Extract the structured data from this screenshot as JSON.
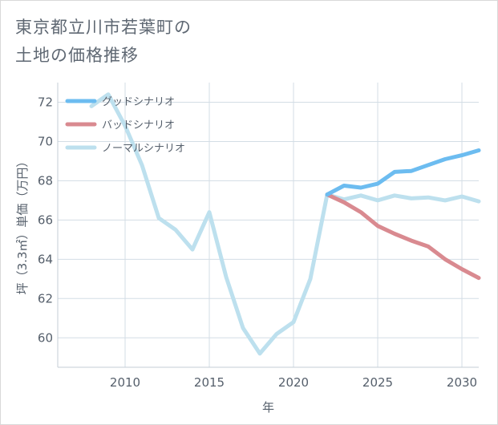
{
  "chart_data": {
    "type": "line",
    "title_lines": [
      "東京都立川市若葉町の",
      "土地の価格推移"
    ],
    "xlabel": "年",
    "ylabel": "坪（3.3㎡）単価（万円）",
    "xlim": [
      2006,
      2031
    ],
    "ylim": [
      58.5,
      73
    ],
    "x_ticks": [
      2010,
      2015,
      2020,
      2025,
      2030
    ],
    "y_ticks": [
      60,
      62,
      64,
      66,
      68,
      70,
      72
    ],
    "grid": true,
    "legend_position": "top-left",
    "series": [
      {
        "name": "グッドシナリオ",
        "color": "#6cbcf0",
        "x": [
          2022,
          2023,
          2024,
          2025,
          2026,
          2027,
          2028,
          2029,
          2030,
          2031
        ],
        "values": [
          67.3,
          67.75,
          67.65,
          67.85,
          68.45,
          68.5,
          68.8,
          69.1,
          69.3,
          69.55
        ]
      },
      {
        "name": "バッドシナリオ",
        "color": "#d98a90",
        "x": [
          2022,
          2023,
          2024,
          2025,
          2026,
          2027,
          2028,
          2029,
          2030,
          2031
        ],
        "values": [
          67.3,
          66.9,
          66.4,
          65.7,
          65.3,
          64.95,
          64.65,
          64.0,
          63.5,
          63.05
        ]
      },
      {
        "name": "ノーマルシナリオ",
        "color": "#bde0ee",
        "x": [
          2008,
          2009,
          2010,
          2011,
          2012,
          2013,
          2014,
          2015,
          2016,
          2017,
          2018,
          2019,
          2020,
          2021,
          2022,
          2023,
          2024,
          2025,
          2026,
          2027,
          2028,
          2029,
          2030,
          2031
        ],
        "values": [
          71.8,
          72.4,
          70.8,
          68.8,
          66.1,
          65.5,
          64.5,
          66.4,
          63.1,
          60.5,
          59.2,
          60.2,
          60.8,
          63.0,
          67.3,
          67.05,
          67.25,
          67.0,
          67.25,
          67.1,
          67.15,
          67.0,
          67.2,
          66.95
        ]
      }
    ]
  }
}
